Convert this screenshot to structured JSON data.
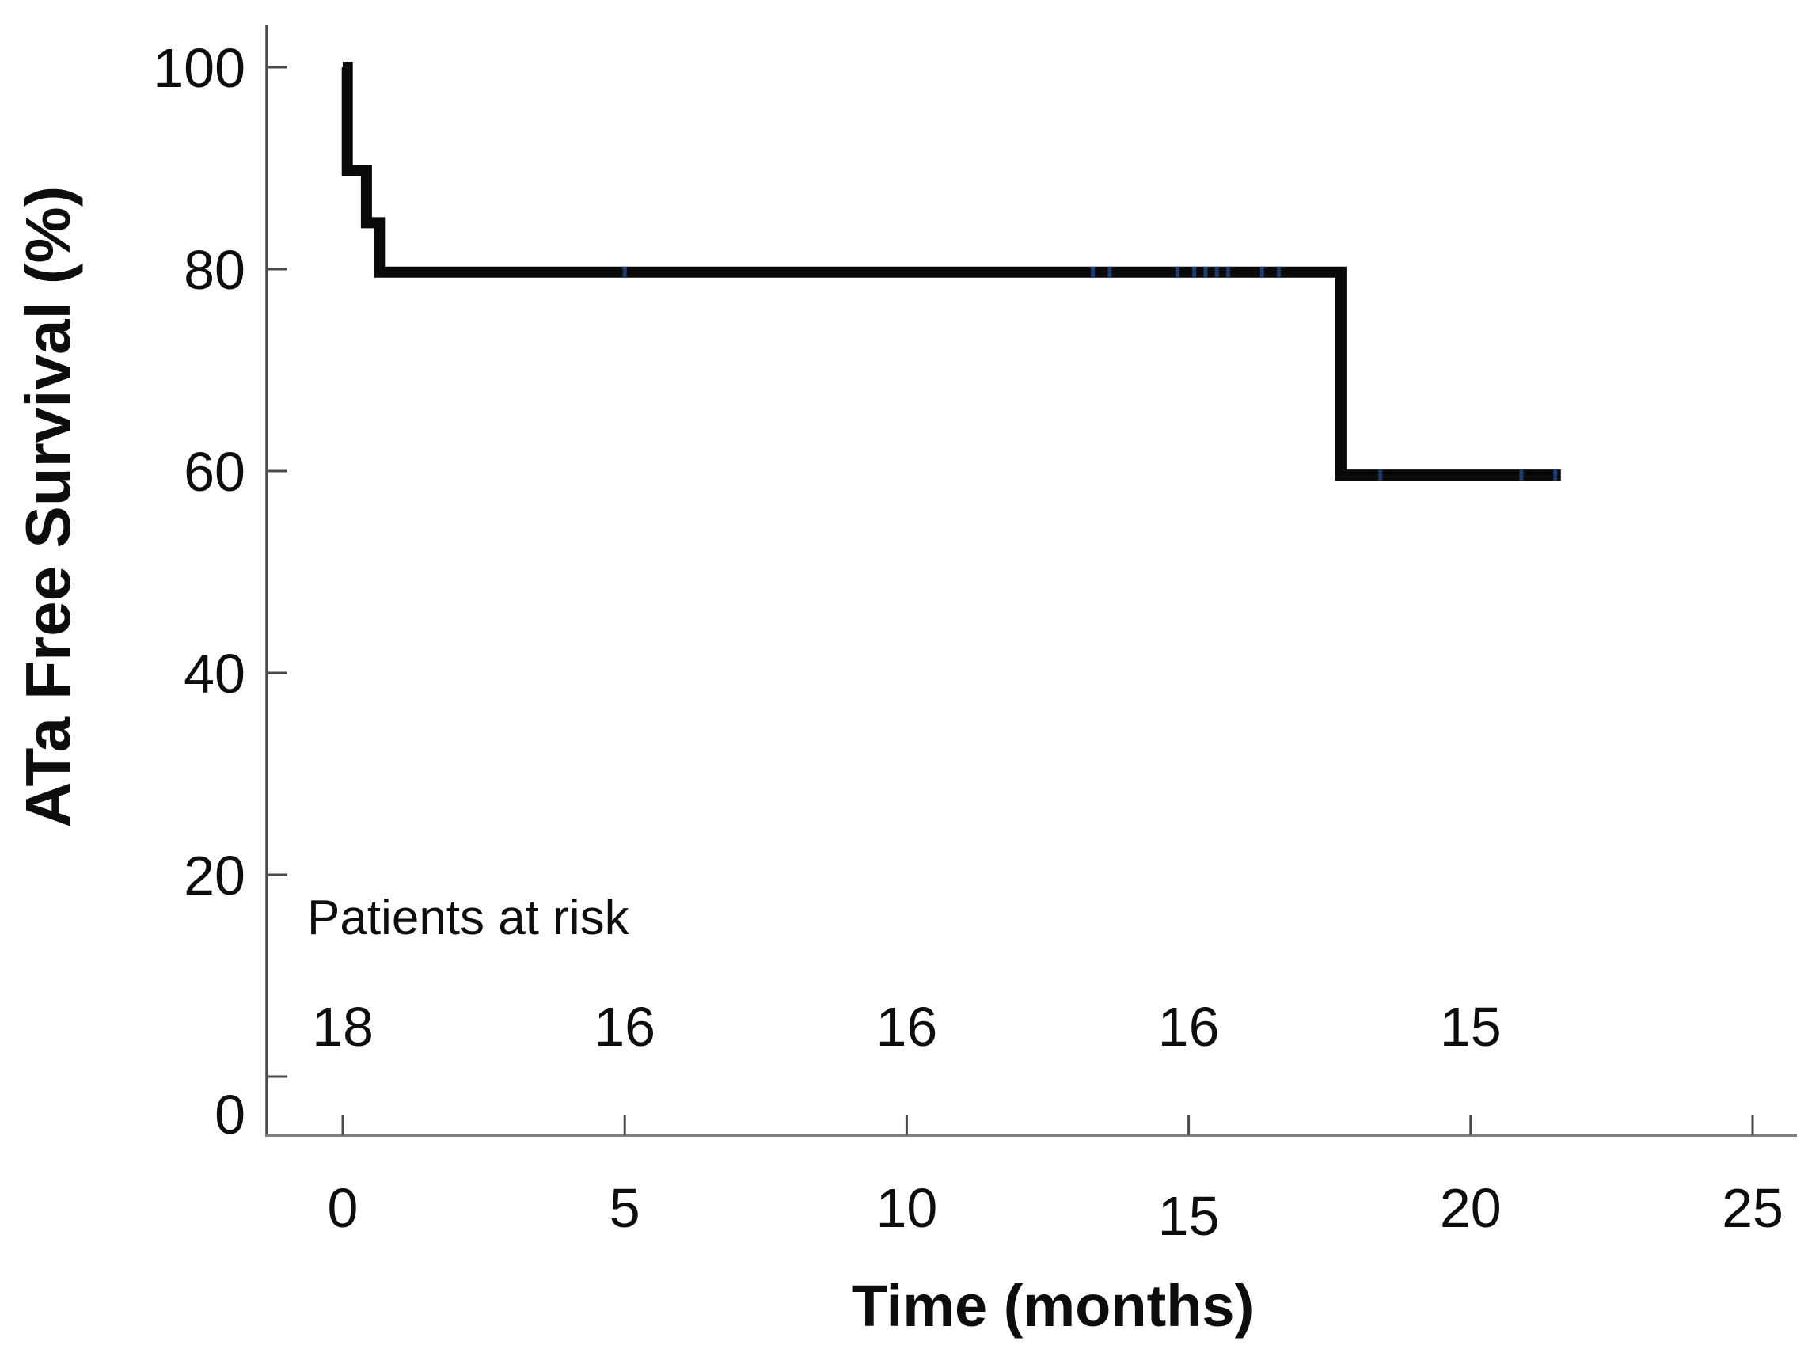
{
  "figure": {
    "kind": "kaplan-meier-survival-plot",
    "background": "#ffffff",
    "colors": {
      "curve": "#0a0a0a",
      "x_axis_line": "#7f7f7f",
      "y_axis_line": "#4a4a4a",
      "tick": "#4a4a4a",
      "text": "#0d0d0d",
      "censor_mark": "#1e3a6e"
    }
  },
  "chart_data": {
    "type": "line",
    "subtype": "kaplan-meier-step",
    "title": "",
    "xlabel": "Time (months)",
    "ylabel": "ATa Free Survival (%)",
    "xlim": [
      0,
      25
    ],
    "ylim": [
      0,
      100
    ],
    "x_ticks": [
      0,
      5,
      10,
      15,
      20,
      25
    ],
    "y_ticks": [
      100,
      80,
      60,
      40,
      20,
      0
    ],
    "grid": false,
    "legend": null,
    "series": [
      {
        "name": "ATa free survival",
        "step_points": [
          [
            0,
            100
          ],
          [
            0.08,
            100
          ],
          [
            0.08,
            89.8
          ],
          [
            0.42,
            89.8
          ],
          [
            0.42,
            84.6
          ],
          [
            0.65,
            84.6
          ],
          [
            0.65,
            79.7
          ],
          [
            17.7,
            79.7
          ],
          [
            17.7,
            59.6
          ],
          [
            21.6,
            59.6
          ]
        ],
        "censor_marks_x": [
          5.0,
          13.3,
          13.6,
          14.8,
          15.1,
          15.3,
          15.5,
          15.7,
          16.3,
          16.6,
          18.4,
          20.9,
          21.5
        ]
      }
    ],
    "at_risk": {
      "label": "Patients at risk",
      "times": [
        0,
        5,
        10,
        15,
        20
      ],
      "counts": [
        "18",
        "16",
        "16",
        "16",
        "15"
      ]
    }
  }
}
